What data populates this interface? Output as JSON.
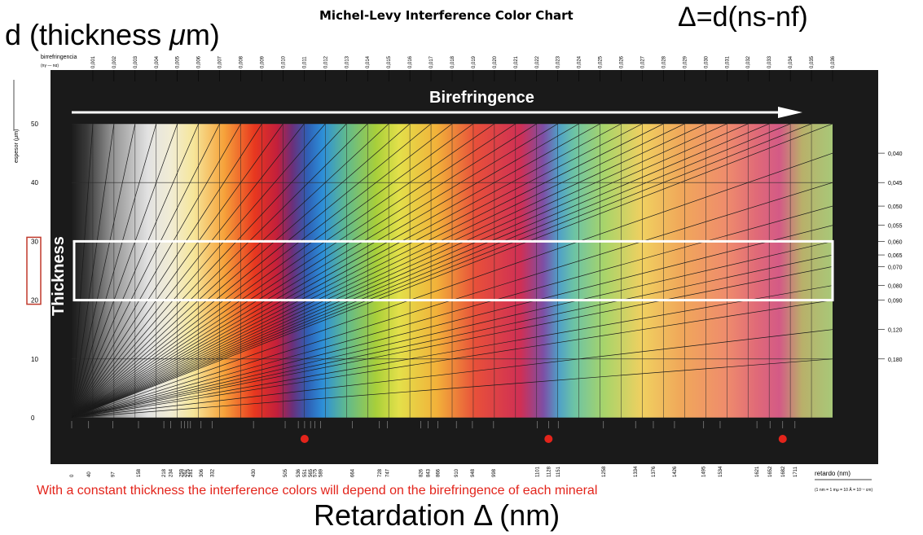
{
  "page": {
    "title": "Michel-Levy Interference Color Chart",
    "formula": "Δ=d(ns-nf)",
    "ylabel_main": "d (thickness μm)",
    "xlabel_main": "Retardation Δ (nm)",
    "note": "With a constant thickness the interference colors will depend on the birefringence of each mineral"
  },
  "chart_data": {
    "type": "heatmap",
    "title": "Michel-Levy Interference Color Chart",
    "xlabel": "retardo (nm)",
    "xlabel_note": "(1 nm = 1 mμ = 10 Å = 10⁻⁷ cm)",
    "ylabel": "espesor (μm)",
    "toplabel": "birrefringencia",
    "toplabel_sub": "(nγ — nα)",
    "arrow_label": "Birefringence",
    "band_label": "Thickness",
    "x_range": [
      0,
      1800
    ],
    "y_range": [
      0,
      50
    ],
    "y_ticks": [
      0,
      10,
      20,
      30,
      40,
      50
    ],
    "thickness_band": [
      20,
      30
    ],
    "retardation_ticks": [
      "0",
      "40",
      "97",
      "158",
      "218",
      "234",
      "259",
      "267",
      "275",
      "281",
      "306",
      "332",
      "430",
      "505",
      "536",
      "551",
      "565",
      "575",
      "589",
      "664",
      "728",
      "747",
      "826",
      "843",
      "866",
      "910",
      "948",
      "998",
      "1101",
      "1128",
      "1151",
      "1258",
      "1334",
      "1376",
      "1426",
      "1495",
      "1534",
      "1621",
      "1652",
      "1682",
      "1711"
    ],
    "birefringence_top": [
      0.001,
      0.002,
      0.003,
      0.004,
      0.005,
      0.006,
      0.007,
      0.008,
      0.009,
      0.01,
      0.011,
      0.012,
      0.013,
      0.014,
      0.015,
      0.016,
      0.017,
      0.018,
      0.019,
      0.02,
      0.021,
      0.022,
      0.023,
      0.024,
      0.025,
      0.026,
      0.027,
      0.028,
      0.029,
      0.03,
      0.031,
      0.032,
      0.033,
      0.034,
      0.035,
      0.036
    ],
    "birefringence_top_labels": [
      "0,001",
      "0,002",
      "0,003",
      "0,004",
      "0,005",
      "0,006",
      "0,007",
      "0,008",
      "0,009",
      "0,010",
      "0,011",
      "0,012",
      "0,013",
      "0,014",
      "0,015",
      "0,016",
      "0,017",
      "0,018",
      "0,019",
      "0,020",
      "0,021",
      "0,022",
      "0,023",
      "0,024",
      "0,025",
      "0,026",
      "0,027",
      "0,028",
      "0,029",
      "0,030",
      "0,031",
      "0,032",
      "0,033",
      "0,034",
      "0,035",
      "0,036"
    ],
    "birefringence_right": [
      0.04,
      0.045,
      0.05,
      0.055,
      0.06,
      0.065,
      0.07,
      0.08,
      0.09,
      0.12,
      0.18
    ],
    "birefringence_right_labels": [
      "0,040",
      "0,045",
      "0,050",
      "0,055",
      "0,060",
      "0,065",
      "0,070",
      "0,080",
      "0,090",
      "0,120",
      "0,180"
    ],
    "order_markers_nm": [
      551,
      1128,
      1682
    ],
    "colors": {
      "background_frame": "#1a1a1a",
      "marker": "#e3241b",
      "band_outline": "#ffffff"
    }
  }
}
